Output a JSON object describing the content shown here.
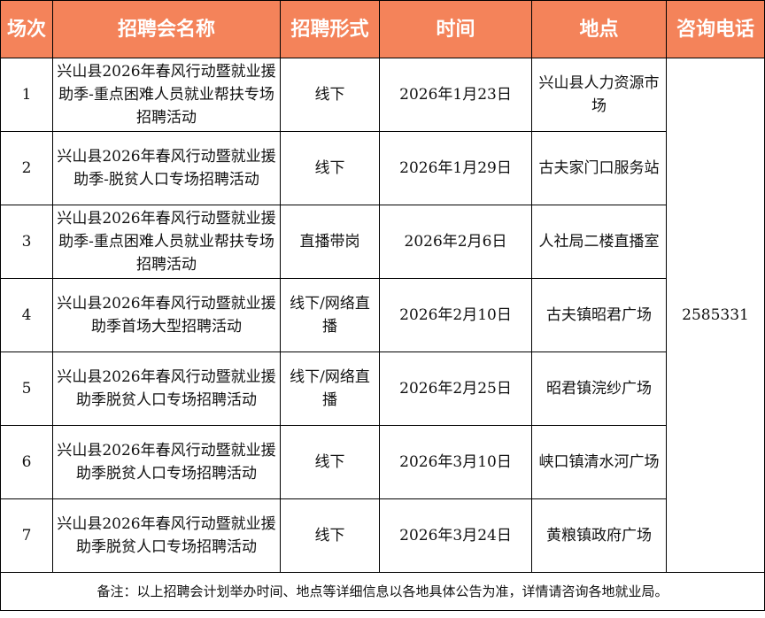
{
  "headers": [
    "场次",
    "招聘会名称",
    "招聘形式",
    "时间",
    "地点",
    "咨询电话"
  ],
  "rows": [
    {
      "no": "1",
      "name": "兴山县2026年春风行动暨就业援助季-重点困难人员就业帮扶专场招聘活动",
      "form": "线下",
      "date": "2026年1月23日",
      "place": "兴山县人力资源市场"
    },
    {
      "no": "2",
      "name": "兴山县2026年春风行动暨就业援助季-脱贫人口专场招聘活动",
      "form": "线下",
      "date": "2026年1月29日",
      "place": "古夫家门口服务站"
    },
    {
      "no": "3",
      "name": "兴山县2026年春风行动暨就业援助季-重点困难人员就业帮扶专场招聘活动",
      "form": "直播带岗",
      "date": "2026年2月6日",
      "place": "人社局二楼直播室"
    },
    {
      "no": "4",
      "name": "兴山县2026年春风行动暨就业援助季首场大型招聘活动",
      "form": "线下/网络直播",
      "date": "2026年2月10日",
      "place": "古夫镇昭君广场"
    },
    {
      "no": "5",
      "name": "兴山县2026年春风行动暨就业援助季脱贫人口专场招聘活动",
      "form": "线下/网络直播",
      "date": "2026年2月25日",
      "place": "昭君镇浣纱广场"
    },
    {
      "no": "6",
      "name": "兴山县2026年春风行动暨就业援助季脱贫人口专场招聘活动",
      "form": "线下",
      "date": "2026年3月10日",
      "place": "峡口镇清水河广场"
    },
    {
      "no": "7",
      "name": "兴山县2026年春风行动暨就业援助季脱贫人口专场招聘活动",
      "form": "线下",
      "date": "2026年3月24日",
      "place": "黄粮镇政府广场"
    }
  ],
  "phone": "2585331",
  "note": "备注：以上招聘会计划举办时间、地点等详细信息以各地具体公告为准，详情请咨询各地就业局。",
  "colors": {
    "header_bg": "#F4835A",
    "header_text": "#FFFFFF"
  }
}
